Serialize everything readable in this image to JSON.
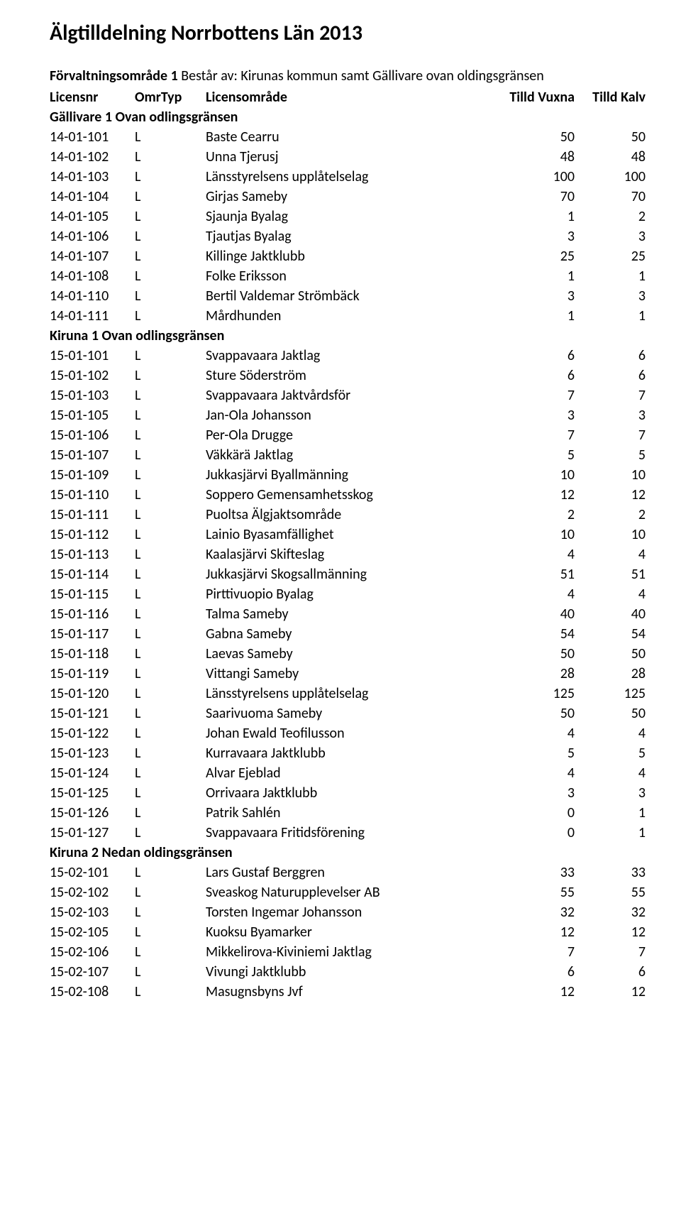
{
  "page_title": "Älgtilldelning Norrbottens Län 2013",
  "subtitle_bold": "Förvaltningsområde 1",
  "subtitle_rest": " Består av: Kirunas kommun samt Gällivare ovan oldingsgränsen",
  "columns": {
    "licensnr": "Licensnr",
    "omrtyp": "OmrTyp",
    "omrade": "Licensområde",
    "vuxna": "Tilld Vuxna",
    "kalv": "Tilld Kalv"
  },
  "blocks": [
    {
      "section": "Gällivare 1 Ovan odlingsgränsen",
      "rows": [
        {
          "nr": "14-01-101",
          "typ": "L",
          "omrade": "Baste Cearru",
          "vuxna": "50",
          "kalv": "50"
        },
        {
          "nr": "14-01-102",
          "typ": "L",
          "omrade": "Unna Tjerusj",
          "vuxna": "48",
          "kalv": "48"
        },
        {
          "nr": "14-01-103",
          "typ": "L",
          "omrade": "Länsstyrelsens upplåtelselag",
          "vuxna": "100",
          "kalv": "100"
        },
        {
          "nr": "14-01-104",
          "typ": "L",
          "omrade": "Girjas Sameby",
          "vuxna": "70",
          "kalv": "70"
        },
        {
          "nr": "14-01-105",
          "typ": "L",
          "omrade": "Sjaunja Byalag",
          "vuxna": "1",
          "kalv": "2"
        },
        {
          "nr": "14-01-106",
          "typ": "L",
          "omrade": "Tjautjas Byalag",
          "vuxna": "3",
          "kalv": "3"
        },
        {
          "nr": "14-01-107",
          "typ": "L",
          "omrade": "Killinge Jaktklubb",
          "vuxna": "25",
          "kalv": "25"
        },
        {
          "nr": "14-01-108",
          "typ": "L",
          "omrade": "Folke Eriksson",
          "vuxna": "1",
          "kalv": "1"
        },
        {
          "nr": "14-01-110",
          "typ": "L",
          "omrade": "Bertil Valdemar Strömbäck",
          "vuxna": "3",
          "kalv": "3"
        },
        {
          "nr": "14-01-111",
          "typ": "L",
          "omrade": "Mårdhunden",
          "vuxna": "1",
          "kalv": "1"
        }
      ]
    },
    {
      "section": "Kiruna 1 Ovan odlingsgränsen",
      "rows": [
        {
          "nr": "15-01-101",
          "typ": "L",
          "omrade": "Svappavaara Jaktlag",
          "vuxna": "6",
          "kalv": "6"
        },
        {
          "nr": "15-01-102",
          "typ": "L",
          "omrade": "Sture Söderström",
          "vuxna": "6",
          "kalv": "6"
        },
        {
          "nr": "15-01-103",
          "typ": "L",
          "omrade": "Svappavaara Jaktvårdsför",
          "vuxna": "7",
          "kalv": "7"
        },
        {
          "nr": "15-01-105",
          "typ": "L",
          "omrade": "Jan-Ola Johansson",
          "vuxna": "3",
          "kalv": "3"
        },
        {
          "nr": "15-01-106",
          "typ": "L",
          "omrade": "Per-Ola Drugge",
          "vuxna": "7",
          "kalv": "7"
        },
        {
          "nr": "15-01-107",
          "typ": "L",
          "omrade": "Väkkärä Jaktlag",
          "vuxna": "5",
          "kalv": "5"
        },
        {
          "nr": "15-01-109",
          "typ": "L",
          "omrade": "Jukkasjärvi Byallmänning",
          "vuxna": "10",
          "kalv": "10"
        },
        {
          "nr": "15-01-110",
          "typ": "L",
          "omrade": "Soppero Gemensamhetsskog",
          "vuxna": "12",
          "kalv": "12"
        },
        {
          "nr": "15-01-111",
          "typ": "L",
          "omrade": "Puoltsa Älgjaktsområde",
          "vuxna": "2",
          "kalv": "2"
        },
        {
          "nr": "15-01-112",
          "typ": "L",
          "omrade": "Lainio Byasamfällighet",
          "vuxna": "10",
          "kalv": "10"
        },
        {
          "nr": "15-01-113",
          "typ": "L",
          "omrade": "Kaalasjärvi Skifteslag",
          "vuxna": "4",
          "kalv": "4"
        },
        {
          "nr": "15-01-114",
          "typ": "L",
          "omrade": "Jukkasjärvi Skogsallmänning",
          "vuxna": "51",
          "kalv": "51"
        },
        {
          "nr": "15-01-115",
          "typ": "L",
          "omrade": "Pirttivuopio Byalag",
          "vuxna": "4",
          "kalv": "4"
        },
        {
          "nr": "15-01-116",
          "typ": "L",
          "omrade": "Talma Sameby",
          "vuxna": "40",
          "kalv": "40"
        },
        {
          "nr": "15-01-117",
          "typ": "L",
          "omrade": "Gabna Sameby",
          "vuxna": "54",
          "kalv": "54"
        },
        {
          "nr": "15-01-118",
          "typ": "L",
          "omrade": "Laevas Sameby",
          "vuxna": "50",
          "kalv": "50"
        },
        {
          "nr": "15-01-119",
          "typ": "L",
          "omrade": "Vittangi Sameby",
          "vuxna": "28",
          "kalv": "28"
        },
        {
          "nr": "15-01-120",
          "typ": "L",
          "omrade": "Länsstyrelsens upplåtelselag",
          "vuxna": "125",
          "kalv": "125"
        },
        {
          "nr": "15-01-121",
          "typ": "L",
          "omrade": "Saarivuoma Sameby",
          "vuxna": "50",
          "kalv": "50"
        },
        {
          "nr": "15-01-122",
          "typ": "L",
          "omrade": "Johan Ewald Teofilusson",
          "vuxna": "4",
          "kalv": "4"
        },
        {
          "nr": "15-01-123",
          "typ": "L",
          "omrade": "Kurravaara Jaktklubb",
          "vuxna": "5",
          "kalv": "5"
        },
        {
          "nr": "15-01-124",
          "typ": "L",
          "omrade": "Alvar Ejeblad",
          "vuxna": "4",
          "kalv": "4"
        },
        {
          "nr": "15-01-125",
          "typ": "L",
          "omrade": "Orrivaara Jaktklubb",
          "vuxna": "3",
          "kalv": "3"
        },
        {
          "nr": "15-01-126",
          "typ": "L",
          "omrade": "Patrik Sahlén",
          "vuxna": "0",
          "kalv": "1"
        },
        {
          "nr": "15-01-127",
          "typ": "L",
          "omrade": "Svappavaara Fritidsförening",
          "vuxna": "0",
          "kalv": "1"
        }
      ]
    },
    {
      "section": "Kiruna 2  Nedan oldingsgränsen",
      "rows": [
        {
          "nr": "15-02-101",
          "typ": "L",
          "omrade": "Lars Gustaf Berggren",
          "vuxna": "33",
          "kalv": "33"
        },
        {
          "nr": "15-02-102",
          "typ": "L",
          "omrade": "Sveaskog Naturupplevelser AB",
          "vuxna": "55",
          "kalv": "55"
        },
        {
          "nr": "15-02-103",
          "typ": "L",
          "omrade": "Torsten Ingemar Johansson",
          "vuxna": "32",
          "kalv": "32"
        },
        {
          "nr": "15-02-105",
          "typ": "L",
          "omrade": "Kuoksu Byamarker",
          "vuxna": "12",
          "kalv": "12"
        },
        {
          "nr": "15-02-106",
          "typ": "L",
          "omrade": "Mikkelirova-Kiviniemi Jaktlag",
          "vuxna": "7",
          "kalv": "7"
        },
        {
          "nr": "15-02-107",
          "typ": "L",
          "omrade": "Vivungi Jaktklubb",
          "vuxna": "6",
          "kalv": "6"
        },
        {
          "nr": "15-02-108",
          "typ": "L",
          "omrade": "Masugnsbyns Jvf",
          "vuxna": "12",
          "kalv": "12"
        }
      ]
    }
  ]
}
